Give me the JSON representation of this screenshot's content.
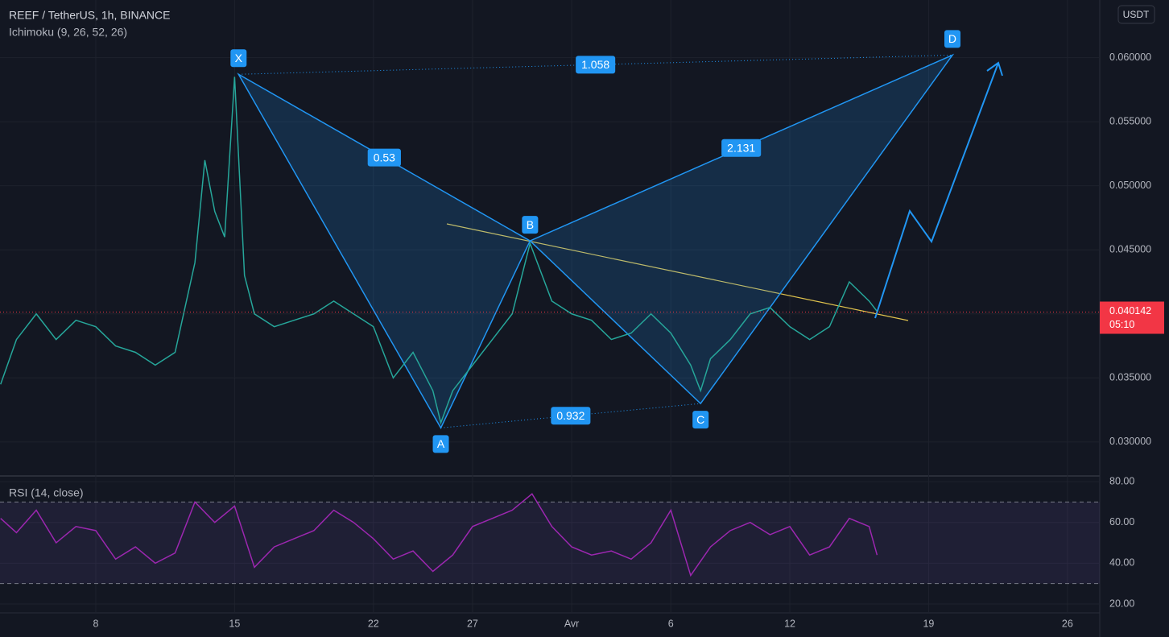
{
  "chart_data": [
    {
      "type": "line",
      "title": "REEF / TetherUS, 1h, BINANCE",
      "subtitle": "Ichimoku (9, 26, 52, 26)",
      "currency": "USDT",
      "x": [
        3.2,
        4,
        5,
        6,
        7,
        8,
        9,
        10,
        11,
        12,
        13,
        13.5,
        14,
        14.5,
        15,
        15.5,
        16,
        17,
        18,
        19,
        20,
        21,
        22,
        23,
        24,
        25,
        25.4,
        26,
        27,
        28,
        29,
        29.9,
        31,
        32,
        33,
        34,
        35,
        36,
        37,
        38,
        38.5,
        39,
        40,
        41,
        42,
        43,
        44,
        45,
        46,
        47,
        47.4
      ],
      "values": [
        0.0345,
        0.038,
        0.04,
        0.038,
        0.0395,
        0.039,
        0.0375,
        0.037,
        0.036,
        0.037,
        0.044,
        0.052,
        0.048,
        0.046,
        0.0585,
        0.043,
        0.04,
        0.039,
        0.0395,
        0.04,
        0.041,
        0.04,
        0.039,
        0.035,
        0.037,
        0.034,
        0.0315,
        0.034,
        0.036,
        0.038,
        0.04,
        0.0455,
        0.041,
        0.04,
        0.0395,
        0.038,
        0.0385,
        0.04,
        0.0385,
        0.036,
        0.034,
        0.0365,
        0.038,
        0.04,
        0.0405,
        0.039,
        0.038,
        0.039,
        0.0425,
        0.041,
        0.0402
      ],
      "color": "#26a69a",
      "xlim": [
        3.17,
        58.63
      ],
      "ylim": [
        0.02735,
        0.0645
      ],
      "yticks": [
        {
          "value": 0.03,
          "label": "0.030000"
        },
        {
          "value": 0.035,
          "label": "0.035000"
        },
        {
          "value": 0.04,
          "label": "0.040000"
        },
        {
          "value": 0.045,
          "label": "0.045000"
        },
        {
          "value": 0.05,
          "label": "0.050000"
        },
        {
          "value": 0.055,
          "label": "0.055000"
        },
        {
          "value": 0.06,
          "label": "0.060000"
        }
      ],
      "xticks": [
        8,
        15,
        22,
        27,
        {
          "value": 32,
          "label": "Avr"
        },
        {
          "value": 37,
          "label": "6"
        },
        {
          "value": 43,
          "label": "12"
        },
        {
          "value": 50,
          "label": "19"
        },
        {
          "value": 57,
          "label": "26"
        }
      ],
      "current_price": {
        "value": 0.040142,
        "label": "0.040142"
      },
      "countdown": "05:10",
      "pattern": {
        "color": "#2196f3",
        "points": [
          {
            "name": "X",
            "x": 15.2,
            "price": 0.0587
          },
          {
            "name": "A",
            "x": 25.4,
            "price": 0.0311
          },
          {
            "name": "B",
            "x": 29.9,
            "price": 0.0457
          },
          {
            "name": "C",
            "x": 38.5,
            "price": 0.033
          },
          {
            "name": "D",
            "x": 51.2,
            "price": 0.0602
          }
        ],
        "ratios": [
          0.53,
          1.058,
          2.131,
          0.932
        ]
      }
    },
    {
      "type": "line",
      "title": "RSI (14, close)",
      "x": [
        3.2,
        4,
        5,
        6,
        7,
        8,
        9,
        10,
        11,
        12,
        13,
        14,
        15,
        16,
        17,
        18,
        19,
        20,
        21,
        22,
        23,
        24,
        25,
        26,
        27,
        28,
        29,
        30,
        31,
        32,
        33,
        34,
        35,
        36,
        37,
        38,
        39,
        40,
        41,
        42,
        43,
        44,
        45,
        46,
        47,
        47.4
      ],
      "values": [
        62,
        55,
        66,
        50,
        58,
        56,
        42,
        48,
        40,
        45,
        70,
        60,
        68,
        38,
        48,
        52,
        56,
        66,
        60,
        52,
        42,
        46,
        36,
        44,
        58,
        62,
        66,
        74,
        58,
        48,
        44,
        46,
        42,
        50,
        66,
        34,
        48,
        56,
        60,
        54,
        58,
        44,
        48,
        62,
        58,
        44
      ],
      "color": "#9c27b0",
      "xlim": [
        3.17,
        58.63
      ],
      "ylim": [
        16.05,
        82.4
      ],
      "yticks": [
        {
          "value": 20,
          "label": "20.00"
        },
        {
          "value": 40,
          "label": "40.00"
        },
        {
          "value": 60,
          "label": "60.00"
        },
        {
          "value": 80,
          "label": "80.00"
        }
      ],
      "bands": [
        30,
        70
      ]
    }
  ]
}
